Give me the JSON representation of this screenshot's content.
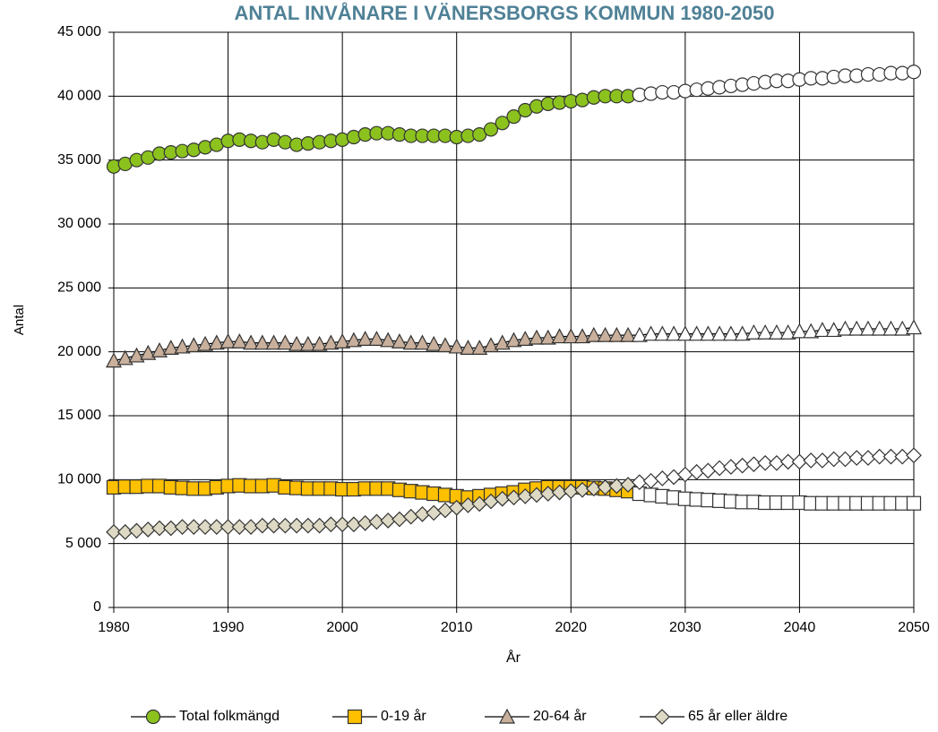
{
  "chart_data": {
    "type": "line",
    "title": "ANTAL INVÅNARE I VÄNERSBORGS KOMMUN 1980-2050",
    "xlabel": "År",
    "ylabel": "Antal",
    "grid": true,
    "legend": "bottom",
    "title_color": "#4f8196",
    "projection_from": 2026,
    "projection_color": "#ffffff",
    "x": [
      1980,
      1981,
      1982,
      1983,
      1984,
      1985,
      1986,
      1987,
      1988,
      1989,
      1990,
      1991,
      1992,
      1993,
      1994,
      1995,
      1996,
      1997,
      1998,
      1999,
      2000,
      2001,
      2002,
      2003,
      2004,
      2005,
      2006,
      2007,
      2008,
      2009,
      2010,
      2011,
      2012,
      2013,
      2014,
      2015,
      2016,
      2017,
      2018,
      2019,
      2020,
      2021,
      2022,
      2023,
      2024,
      2025,
      2026,
      2027,
      2028,
      2029,
      2030,
      2031,
      2032,
      2033,
      2034,
      2035,
      2036,
      2037,
      2038,
      2039,
      2040,
      2041,
      2042,
      2043,
      2044,
      2045,
      2046,
      2047,
      2048,
      2049,
      2050
    ],
    "xlim": [
      1980,
      2050
    ],
    "xticks": [
      1980,
      1990,
      2000,
      2010,
      2020,
      2030,
      2040,
      2050
    ],
    "ylim": [
      0,
      45000
    ],
    "yticks": [
      0,
      {
        "value": 5000,
        "label": "5 000"
      },
      {
        "value": 10000,
        "label": "10 000"
      },
      {
        "value": 15000,
        "label": "15 000"
      },
      {
        "value": 20000,
        "label": "20 000"
      },
      {
        "value": 25000,
        "label": "25 000"
      },
      {
        "value": 30000,
        "label": "30 000"
      },
      {
        "value": 35000,
        "label": "35 000"
      },
      {
        "value": 40000,
        "label": "40 000"
      },
      {
        "value": 45000,
        "label": "45 000"
      }
    ],
    "series": [
      {
        "name": "Total folkmängd",
        "color": "#8cc21e",
        "marker": "circle",
        "values": [
          34500,
          34700,
          35000,
          35200,
          35500,
          35600,
          35700,
          35800,
          36000,
          36200,
          36500,
          36600,
          36500,
          36400,
          36600,
          36400,
          36200,
          36300,
          36400,
          36500,
          36600,
          36800,
          37000,
          37100,
          37100,
          37000,
          36900,
          36900,
          36900,
          36900,
          36800,
          36900,
          37000,
          37400,
          37900,
          38400,
          38900,
          39200,
          39400,
          39500,
          39600,
          39700,
          39900,
          40000,
          40000,
          40000,
          40100,
          40200,
          40300,
          40300,
          40400,
          40500,
          40600,
          40700,
          40800,
          40900,
          41000,
          41100,
          41200,
          41200,
          41300,
          41400,
          41400,
          41500,
          41600,
          41600,
          41700,
          41700,
          41800,
          41800,
          41900
        ]
      },
      {
        "name": "0-19 år",
        "color": "#ffc000",
        "marker": "square",
        "values": [
          9400,
          9450,
          9450,
          9500,
          9500,
          9400,
          9350,
          9300,
          9300,
          9400,
          9500,
          9550,
          9500,
          9500,
          9550,
          9400,
          9350,
          9300,
          9300,
          9300,
          9250,
          9250,
          9300,
          9300,
          9300,
          9200,
          9100,
          9000,
          8900,
          8800,
          8700,
          8600,
          8700,
          8800,
          8900,
          9000,
          9200,
          9300,
          9400,
          9400,
          9400,
          9400,
          9350,
          9300,
          9200,
          9100,
          8900,
          8800,
          8700,
          8600,
          8500,
          8450,
          8400,
          8350,
          8300,
          8250,
          8250,
          8200,
          8200,
          8200,
          8200,
          8150,
          8150,
          8150,
          8150,
          8150,
          8150,
          8150,
          8150,
          8150,
          8150
        ]
      },
      {
        "name": "20-64 år",
        "color": "#c9b09c",
        "marker": "triangle",
        "values": [
          19300,
          19500,
          19700,
          19900,
          20100,
          20300,
          20400,
          20500,
          20600,
          20700,
          20800,
          20800,
          20700,
          20700,
          20700,
          20700,
          20600,
          20600,
          20600,
          20700,
          20800,
          20900,
          21000,
          21000,
          20900,
          20800,
          20700,
          20700,
          20600,
          20500,
          20400,
          20300,
          20300,
          20500,
          20700,
          20900,
          21000,
          21100,
          21100,
          21200,
          21200,
          21200,
          21300,
          21300,
          21300,
          21300,
          21300,
          21400,
          21400,
          21400,
          21400,
          21400,
          21400,
          21400,
          21400,
          21400,
          21500,
          21500,
          21500,
          21500,
          21600,
          21600,
          21700,
          21700,
          21800,
          21800,
          21800,
          21800,
          21800,
          21800,
          21900
        ]
      },
      {
        "name": "65 år eller äldre",
        "color": "#ddd9c4",
        "marker": "diamond",
        "values": [
          5900,
          5900,
          6000,
          6100,
          6200,
          6200,
          6300,
          6300,
          6300,
          6300,
          6300,
          6300,
          6300,
          6400,
          6400,
          6400,
          6400,
          6400,
          6400,
          6500,
          6500,
          6500,
          6600,
          6700,
          6800,
          6900,
          7100,
          7300,
          7400,
          7600,
          7800,
          8000,
          8100,
          8300,
          8500,
          8600,
          8700,
          8800,
          8900,
          9000,
          9100,
          9200,
          9300,
          9400,
          9500,
          9600,
          9800,
          9900,
          10100,
          10200,
          10400,
          10600,
          10700,
          10900,
          11000,
          11100,
          11200,
          11300,
          11300,
          11400,
          11400,
          11500,
          11500,
          11600,
          11600,
          11700,
          11700,
          11800,
          11800,
          11800,
          11900
        ]
      }
    ]
  }
}
